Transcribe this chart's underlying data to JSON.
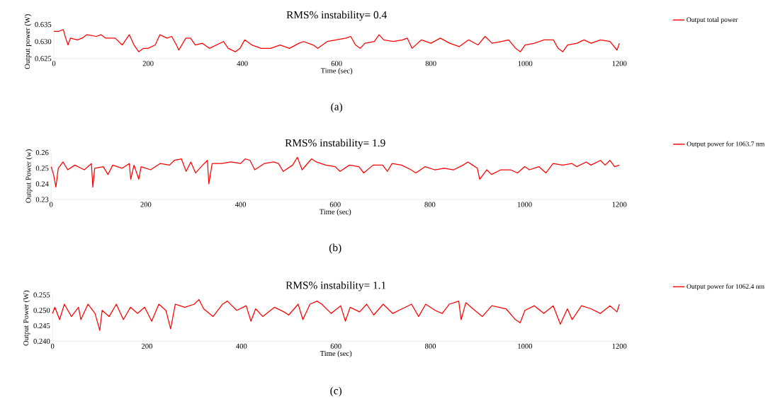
{
  "chart_data": [
    {
      "type": "line",
      "title": "RMS% instability= 0.4",
      "xlabel": "Time (sec)",
      "ylabel": "Output power (W)",
      "annotations": [
        "(a)"
      ],
      "legend": "right",
      "xlim": [
        0,
        1200
      ],
      "xticks": [
        0,
        200,
        400,
        600,
        800,
        1000,
        1200
      ],
      "ylim": [
        0.625,
        0.635
      ],
      "yticks": [
        0.625,
        {
          "value": 0.63,
          "label": "0.630"
        },
        0.635
      ],
      "x": [
        0,
        10,
        20,
        25,
        30,
        35,
        50,
        60,
        70,
        90,
        100,
        110,
        130,
        145,
        155,
        160,
        170,
        180,
        190,
        200,
        215,
        225,
        240,
        250,
        260,
        265,
        280,
        290,
        300,
        315,
        330,
        345,
        360,
        370,
        385,
        395,
        405,
        420,
        440,
        460,
        480,
        500,
        520,
        530,
        550,
        560,
        580,
        600,
        620,
        630,
        640,
        650,
        660,
        680,
        690,
        700,
        720,
        740,
        750,
        760,
        780,
        800,
        820,
        840,
        860,
        880,
        900,
        915,
        930,
        950,
        965,
        980,
        990,
        1000,
        1020,
        1040,
        1060,
        1070,
        1080,
        1090,
        1110,
        1125,
        1140,
        1160,
        1180,
        1195,
        1200
      ],
      "series": [
        {
          "name": "Output total power",
          "color": "#ff0000",
          "values": [
            0.633,
            0.633,
            0.6335,
            0.631,
            0.629,
            0.631,
            0.6305,
            0.631,
            0.632,
            0.6315,
            0.632,
            0.631,
            0.631,
            0.629,
            0.631,
            0.632,
            0.629,
            0.627,
            0.628,
            0.628,
            0.629,
            0.632,
            0.631,
            0.6315,
            0.629,
            0.6275,
            0.631,
            0.631,
            0.629,
            0.6295,
            0.628,
            0.629,
            0.63,
            0.628,
            0.627,
            0.628,
            0.6305,
            0.629,
            0.628,
            0.628,
            0.629,
            0.628,
            0.6295,
            0.63,
            0.629,
            0.628,
            0.63,
            0.6305,
            0.631,
            0.6315,
            0.629,
            0.628,
            0.6295,
            0.63,
            0.632,
            0.6305,
            0.63,
            0.6305,
            0.631,
            0.628,
            0.6305,
            0.6295,
            0.631,
            0.6295,
            0.6285,
            0.6305,
            0.629,
            0.6315,
            0.6295,
            0.63,
            0.6305,
            0.628,
            0.627,
            0.629,
            0.6295,
            0.6305,
            0.6305,
            0.628,
            0.627,
            0.629,
            0.6295,
            0.6305,
            0.6295,
            0.6305,
            0.63,
            0.6275,
            0.6295
          ]
        }
      ]
    },
    {
      "type": "line",
      "title": "RMS% instability= 1.9",
      "xlabel": "Time (sec)",
      "ylabel": "Output Power (w)",
      "annotations": [
        "(b)"
      ],
      "legend": "right",
      "xlim": [
        0,
        1200
      ],
      "xticks": [
        0,
        200,
        400,
        600,
        800,
        1000,
        1200
      ],
      "ylim": [
        0.23,
        0.26
      ],
      "yticks": [
        0.23,
        0.24,
        0.25,
        0.26
      ],
      "x": [
        0,
        5,
        10,
        15,
        25,
        35,
        50,
        70,
        85,
        88,
        92,
        110,
        120,
        130,
        150,
        165,
        168,
        175,
        185,
        190,
        210,
        230,
        250,
        260,
        275,
        285,
        295,
        305,
        320,
        330,
        333,
        340,
        360,
        380,
        400,
        410,
        420,
        430,
        450,
        470,
        480,
        490,
        510,
        520,
        530,
        550,
        560,
        580,
        600,
        610,
        630,
        650,
        660,
        680,
        700,
        710,
        720,
        740,
        760,
        770,
        790,
        810,
        830,
        850,
        870,
        880,
        890,
        900,
        905,
        920,
        930,
        950,
        970,
        985,
        1000,
        1010,
        1030,
        1045,
        1060,
        1080,
        1100,
        1110,
        1130,
        1140,
        1160,
        1170,
        1180,
        1190,
        1200
      ],
      "series": [
        {
          "name": "Output power for 1063.7 nm",
          "color": "#ff0000",
          "values": [
            0.251,
            0.246,
            0.238,
            0.25,
            0.254,
            0.249,
            0.252,
            0.249,
            0.253,
            0.238,
            0.25,
            0.251,
            0.246,
            0.252,
            0.25,
            0.253,
            0.243,
            0.252,
            0.243,
            0.251,
            0.249,
            0.253,
            0.252,
            0.255,
            0.256,
            0.248,
            0.254,
            0.247,
            0.252,
            0.255,
            0.24,
            0.253,
            0.253,
            0.254,
            0.253,
            0.256,
            0.255,
            0.249,
            0.253,
            0.254,
            0.253,
            0.248,
            0.252,
            0.257,
            0.249,
            0.256,
            0.254,
            0.252,
            0.251,
            0.248,
            0.252,
            0.251,
            0.247,
            0.252,
            0.252,
            0.248,
            0.253,
            0.252,
            0.249,
            0.247,
            0.251,
            0.249,
            0.25,
            0.249,
            0.252,
            0.254,
            0.252,
            0.25,
            0.243,
            0.249,
            0.246,
            0.249,
            0.249,
            0.247,
            0.251,
            0.249,
            0.251,
            0.247,
            0.253,
            0.252,
            0.253,
            0.251,
            0.254,
            0.252,
            0.255,
            0.252,
            0.255,
            0.251,
            0.252
          ]
        }
      ]
    },
    {
      "type": "line",
      "title": "RMS% instability= 1.1",
      "xlabel": "Time (sec)",
      "ylabel": "Output Power (W)",
      "annotations": [
        "(c)"
      ],
      "legend": "right",
      "xlim": [
        0,
        1200
      ],
      "xticks": [
        0,
        200,
        400,
        600,
        800,
        1000,
        1200
      ],
      "ylim": [
        0.24,
        0.255
      ],
      "yticks": [
        {
          "value": 0.24,
          "label": "0.240"
        },
        {
          "value": 0.245,
          "label": "0.245"
        },
        {
          "value": 0.25,
          "label": "0.250"
        },
        {
          "value": 0.255,
          "label": "0.255"
        }
      ],
      "x": [
        0,
        5,
        15,
        25,
        40,
        55,
        60,
        75,
        90,
        100,
        105,
        120,
        135,
        150,
        165,
        180,
        195,
        210,
        225,
        240,
        250,
        260,
        280,
        300,
        310,
        320,
        340,
        360,
        370,
        390,
        410,
        420,
        430,
        445,
        470,
        490,
        500,
        520,
        530,
        545,
        560,
        570,
        590,
        610,
        620,
        630,
        650,
        665,
        680,
        700,
        720,
        740,
        760,
        775,
        790,
        810,
        825,
        840,
        860,
        865,
        875,
        890,
        910,
        930,
        960,
        980,
        990,
        1000,
        1020,
        1040,
        1060,
        1075,
        1090,
        1100,
        1120,
        1140,
        1160,
        1180,
        1195,
        1200
      ],
      "series": [
        {
          "name": "Output power for 1062.4 nm",
          "color": "#ff0000",
          "values": [
            0.249,
            0.251,
            0.247,
            0.252,
            0.248,
            0.251,
            0.247,
            0.252,
            0.249,
            0.2435,
            0.25,
            0.248,
            0.252,
            0.247,
            0.251,
            0.249,
            0.251,
            0.2465,
            0.252,
            0.25,
            0.244,
            0.252,
            0.251,
            0.252,
            0.2535,
            0.2505,
            0.248,
            0.252,
            0.253,
            0.25,
            0.2515,
            0.2465,
            0.2505,
            0.248,
            0.251,
            0.2495,
            0.2485,
            0.252,
            0.247,
            0.252,
            0.253,
            0.252,
            0.249,
            0.2515,
            0.2465,
            0.251,
            0.2495,
            0.252,
            0.2485,
            0.252,
            0.249,
            0.2505,
            0.252,
            0.248,
            0.252,
            0.25,
            0.249,
            0.252,
            0.253,
            0.247,
            0.2525,
            0.2505,
            0.248,
            0.2515,
            0.2505,
            0.247,
            0.246,
            0.25,
            0.2515,
            0.249,
            0.2515,
            0.2455,
            0.2505,
            0.247,
            0.2515,
            0.2505,
            0.249,
            0.2515,
            0.2495,
            0.252
          ]
        }
      ]
    }
  ]
}
